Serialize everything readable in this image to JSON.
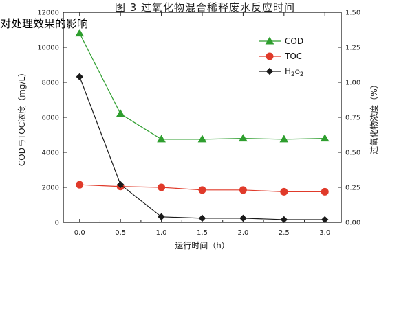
{
  "chart_data": {
    "type": "line",
    "x": [
      0.0,
      0.5,
      1.0,
      1.5,
      2.0,
      2.5,
      3.0
    ],
    "x_ticks": [
      "0.0",
      "0.5",
      "1.0",
      "1.5",
      "2.0",
      "2.5",
      "3.0"
    ],
    "xlim": [
      -0.2,
      3.2
    ],
    "xlabel": "运行时间（h）",
    "ylabel_left": "COD与TOC浓度（mg/L）",
    "ylim_left": [
      0,
      12000
    ],
    "y_ticks_left": [
      "0",
      "2000",
      "4000",
      "6000",
      "8000",
      "10000",
      "12000"
    ],
    "ylabel_right": "过氧化物浓度（%）",
    "ylim_right": [
      0,
      1.5
    ],
    "y_ticks_right": [
      "0.00",
      "0.25",
      "0.50",
      "0.75",
      "1.00",
      "1.25",
      "1.50"
    ],
    "legend_position": "top-right",
    "series": [
      {
        "name": "COD",
        "axis": "left",
        "color": "#2e9e2e",
        "marker": "triangle",
        "values": [
          10800,
          6200,
          4750,
          4750,
          4800,
          4750,
          4800
        ]
      },
      {
        "name": "TOC",
        "axis": "left",
        "color": "#e03a2a",
        "marker": "circle",
        "values": [
          2150,
          2050,
          2000,
          1850,
          1850,
          1750,
          1750
        ]
      },
      {
        "name": "H2O2",
        "axis": "right",
        "color": "#1a1a1a",
        "marker": "diamond",
        "values": [
          1.04,
          0.27,
          0.04,
          0.03,
          0.03,
          0.02,
          0.02
        ]
      }
    ]
  },
  "caption": {
    "line1": "图 3  过氧化物混合稀释废水反应时间",
    "line2": "对处理效果的影响"
  }
}
